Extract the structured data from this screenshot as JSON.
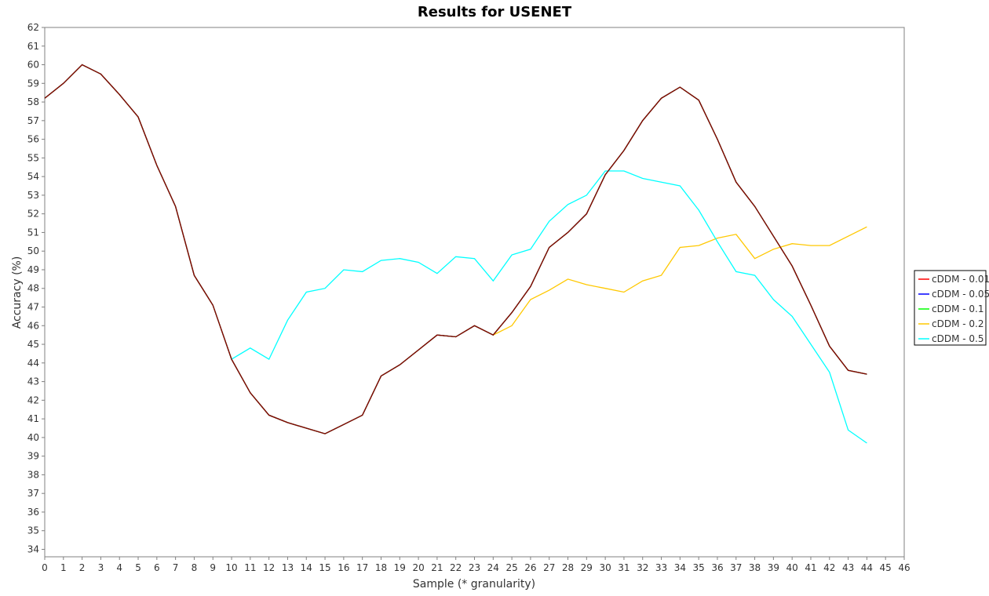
{
  "chart_data": {
    "type": "line",
    "title": "Results for USENET",
    "xlabel": "Sample (* granularity)",
    "ylabel": "Accuracy (%)",
    "xlim": [
      0,
      46
    ],
    "ylim": [
      33.6,
      62
    ],
    "x_ticks": [
      0,
      1,
      2,
      3,
      4,
      5,
      6,
      7,
      8,
      9,
      10,
      11,
      12,
      13,
      14,
      15,
      16,
      17,
      18,
      19,
      20,
      21,
      22,
      23,
      24,
      25,
      26,
      27,
      28,
      29,
      30,
      31,
      32,
      33,
      34,
      35,
      36,
      37,
      38,
      39,
      40,
      41,
      42,
      43,
      44,
      45,
      46
    ],
    "y_ticks": [
      34,
      35,
      36,
      37,
      38,
      39,
      40,
      41,
      42,
      43,
      44,
      45,
      46,
      47,
      48,
      49,
      50,
      51,
      52,
      53,
      54,
      55,
      56,
      57,
      58,
      59,
      60,
      61,
      62
    ],
    "grid": false,
    "legend_position": "right",
    "series": [
      {
        "name": "cDDM - 0.01",
        "color": "#ff0000",
        "x": [
          0,
          1,
          2,
          3,
          4,
          5,
          6,
          7,
          8,
          9,
          10,
          11,
          12,
          13,
          14,
          15,
          16,
          17,
          18,
          19,
          20,
          21,
          22,
          23,
          24,
          25,
          26,
          27,
          28,
          29,
          30,
          31,
          32,
          33,
          34,
          35,
          36,
          37,
          38,
          39,
          40,
          41,
          42,
          43,
          44
        ],
        "values": [
          58.2,
          59.0,
          60.0,
          59.5,
          58.4,
          57.2,
          54.6,
          52.4,
          48.7,
          47.1,
          44.2,
          42.4,
          41.2,
          40.8,
          40.5,
          40.2,
          40.7,
          41.2,
          43.3,
          43.9,
          44.7,
          45.5,
          45.4,
          46.0,
          45.5,
          46.7,
          48.1,
          50.2,
          51.0,
          52.0,
          54.1,
          55.4,
          57.0,
          58.2,
          58.8,
          58.1,
          56.0,
          53.7,
          52.4,
          50.8,
          49.2,
          47.1,
          44.9,
          43.6,
          43.4
        ]
      },
      {
        "name": "cDDM - 0.05",
        "color": "#0000ff",
        "x": [
          0,
          1,
          2,
          3,
          4,
          5,
          6,
          7,
          8,
          9,
          10,
          11,
          12,
          13,
          14,
          15,
          16,
          17,
          18,
          19,
          20,
          21,
          22,
          23,
          24,
          25,
          26,
          27,
          28,
          29,
          30,
          31,
          32,
          33,
          34,
          35,
          36,
          37,
          38,
          39,
          40,
          41,
          42,
          43,
          44
        ],
        "values": [
          58.2,
          59.0,
          60.0,
          59.5,
          58.4,
          57.2,
          54.6,
          52.4,
          48.7,
          47.1,
          44.2,
          42.4,
          41.2,
          40.8,
          40.5,
          40.2,
          40.7,
          41.2,
          43.3,
          43.9,
          44.7,
          45.5,
          45.4,
          46.0,
          45.5,
          46.7,
          48.1,
          50.2,
          51.0,
          52.0,
          54.1,
          55.4,
          57.0,
          58.2,
          58.8,
          58.1,
          56.0,
          53.7,
          52.4,
          50.8,
          49.2,
          47.1,
          44.9,
          43.6,
          43.4
        ]
      },
      {
        "name": "cDDM - 0.1",
        "color": "#00ff00",
        "x": [
          0,
          1,
          2,
          3,
          4,
          5,
          6,
          7,
          8,
          9,
          10,
          11,
          12,
          13,
          14,
          15,
          16,
          17,
          18,
          19,
          20,
          21,
          22,
          23,
          24,
          25,
          26,
          27,
          28,
          29,
          30,
          31,
          32,
          33,
          34,
          35,
          36,
          37,
          38,
          39,
          40,
          41,
          42,
          43,
          44
        ],
        "values": [
          58.2,
          59.0,
          60.0,
          59.5,
          58.4,
          57.2,
          54.6,
          52.4,
          48.7,
          47.1,
          44.2,
          42.4,
          41.2,
          40.8,
          40.5,
          40.2,
          40.7,
          41.2,
          43.3,
          43.9,
          44.7,
          45.5,
          45.4,
          46.0,
          45.5,
          46.7,
          48.1,
          50.2,
          51.0,
          52.0,
          54.1,
          55.4,
          57.0,
          58.2,
          58.8,
          58.1,
          56.0,
          53.7,
          52.4,
          50.8,
          49.2,
          47.1,
          44.9,
          43.6,
          43.4
        ]
      },
      {
        "name": "cDDM - 0.2",
        "color": "#ffc800",
        "x": [
          24,
          25,
          26,
          27,
          28,
          29,
          30,
          31,
          32,
          33,
          34,
          35,
          36,
          37,
          38,
          39,
          40,
          41,
          42,
          43,
          44
        ],
        "values": [
          45.5,
          46.0,
          47.4,
          47.9,
          48.5,
          48.2,
          48.0,
          47.8,
          48.4,
          48.7,
          50.2,
          50.3,
          50.7,
          50.9,
          49.6,
          50.1,
          50.4,
          50.3,
          50.3,
          50.8,
          51.3
        ]
      },
      {
        "name": "cDDM - 0.5",
        "color": "#00ffff",
        "x": [
          10,
          11,
          12,
          13,
          14,
          15,
          16,
          17,
          18,
          19,
          20,
          21,
          22,
          23,
          24,
          25,
          26,
          27,
          28,
          29,
          30,
          31,
          32,
          33,
          34,
          35,
          36,
          37,
          38,
          39,
          40,
          41,
          42,
          43,
          44
        ],
        "values": [
          44.2,
          44.8,
          44.2,
          46.3,
          47.8,
          48.0,
          49.0,
          48.9,
          49.5,
          49.6,
          49.4,
          48.8,
          49.7,
          49.6,
          48.4,
          49.8,
          50.1,
          51.6,
          52.5,
          53.0,
          54.3,
          54.3,
          53.9,
          53.7,
          53.5,
          52.2,
          50.5,
          48.9,
          48.7,
          47.4,
          46.5,
          45.0,
          43.5,
          40.4,
          39.7
        ]
      },
      {
        "name": "",
        "color": "#8b0000",
        "x": [
          0,
          1,
          2,
          3,
          4,
          5,
          6,
          7,
          8,
          9,
          10,
          11,
          12,
          13,
          14,
          15,
          16,
          17,
          18,
          19,
          20,
          21,
          22,
          23,
          24,
          25,
          26,
          27,
          28,
          29,
          30,
          31,
          32,
          33,
          34,
          35,
          36,
          37,
          38,
          39,
          40,
          41,
          42,
          43,
          44
        ],
        "values": [
          58.2,
          59.0,
          60.0,
          59.5,
          58.4,
          57.2,
          54.6,
          52.4,
          48.7,
          47.1,
          44.2,
          42.4,
          41.2,
          40.8,
          40.5,
          40.2,
          40.7,
          41.2,
          43.3,
          43.9,
          44.7,
          45.5,
          45.4,
          46.0,
          45.5,
          46.7,
          48.1,
          50.2,
          51.0,
          52.0,
          54.1,
          55.4,
          57.0,
          58.2,
          58.8,
          58.1,
          56.0,
          53.7,
          52.4,
          50.8,
          49.2,
          47.1,
          44.9,
          43.6,
          43.4
        ],
        "in_legend": false
      }
    ]
  }
}
